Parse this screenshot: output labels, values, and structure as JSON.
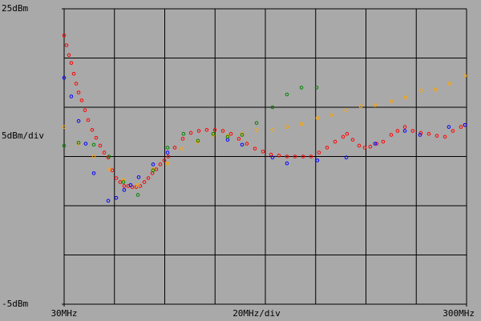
{
  "chart_data": {
    "type": "scatter",
    "ylabel": "5dBm/div",
    "xlabel": "20MHz/div",
    "xlim": [
      30,
      300
    ],
    "ylim": [
      -5,
      25
    ],
    "xticks": [
      {
        "value": 30,
        "label": "30MHz"
      },
      {
        "value": 300,
        "label": "300MHz"
      }
    ],
    "yticks": [
      {
        "value": 25,
        "label": "25dBm"
      },
      {
        "value": -5,
        "label": "-5dBm"
      }
    ],
    "grid": true,
    "series": [
      {
        "color": "#ff0000",
        "x": [
          30.0,
          31.6,
          33.2,
          34.8,
          36.5,
          38.1,
          39.7,
          41.8,
          44.0,
          46.1,
          48.8,
          51.5,
          54.2,
          56.9,
          59.6,
          62.3,
          65.0,
          67.6,
          70.3,
          73.0,
          75.7,
          78.4,
          81.1,
          83.8,
          86.5,
          89.2,
          91.8,
          94.5,
          97.2,
          99.9,
          104.2,
          109.6,
          115.0,
          120.4,
          125.7,
          131.1,
          136.5,
          141.9,
          147.2,
          152.6,
          158.0,
          163.4,
          168.8,
          174.1,
          179.5,
          184.9,
          190.3,
          195.6,
          201.0,
          206.4,
          211.8,
          217.2,
          219.8,
          223.6,
          227.9,
          231.7,
          235.4,
          239.7,
          244.0,
          249.4,
          253.7,
          258.6,
          263.9,
          269.3,
          274.7,
          280.1,
          285.5,
          290.8,
          296.2,
          298.9
        ],
        "values": [
          22.3,
          21.3,
          20.3,
          19.5,
          18.4,
          17.4,
          16.5,
          15.7,
          14.7,
          13.7,
          12.7,
          11.9,
          11.1,
          10.4,
          9.9,
          8.6,
          7.8,
          7.4,
          7.0,
          7.0,
          6.9,
          6.9,
          7.0,
          7.4,
          7.8,
          8.3,
          8.7,
          9.2,
          9.6,
          10.0,
          10.9,
          11.8,
          12.4,
          12.6,
          12.7,
          12.7,
          12.6,
          12.3,
          11.8,
          11.3,
          10.8,
          10.5,
          10.2,
          10.1,
          10.0,
          10.0,
          10.0,
          10.0,
          10.4,
          10.9,
          11.5,
          12.0,
          12.3,
          11.7,
          11.1,
          10.9,
          11.0,
          11.3,
          11.5,
          12.2,
          12.6,
          13.0,
          12.6,
          12.4,
          12.3,
          12.1,
          12.0,
          12.6,
          13.0,
          13.2
        ]
      },
      {
        "color": "#0000ff",
        "x": [
          30.0,
          34.8,
          39.7,
          44.5,
          49.9,
          59.6,
          65.0,
          70.3,
          74.6,
          80.0,
          89.7,
          99.4,
          139.7,
          149.4,
          169.8,
          179.5,
          199.9,
          219.3,
          238.6,
          258.6,
          268.8,
          288.1,
          298.9
        ],
        "values": [
          18.0,
          16.1,
          13.6,
          11.3,
          8.3,
          5.5,
          5.8,
          6.6,
          7.1,
          7.9,
          9.2,
          10.4,
          11.7,
          11.2,
          9.9,
          9.3,
          9.6,
          9.9,
          11.3,
          12.6,
          12.2,
          13.0,
          13.2
        ]
      },
      {
        "color": "#ffa500",
        "x": [
          30.0,
          39.7,
          49.9,
          60.1,
          69.8,
          79.5,
          89.7,
          99.4,
          109.1,
          119.4,
          130.0,
          139.7,
          149.4,
          159.1,
          169.8,
          179.5,
          189.2,
          199.9,
          209.1,
          219.3,
          229.0,
          238.6,
          249.4,
          259.1,
          269.3,
          279.0,
          288.7,
          298.9
        ],
        "values": [
          13.0,
          11.3,
          10.0,
          8.7,
          7.6,
          7.1,
          8.7,
          9.3,
          10.8,
          11.5,
          12.2,
          12.1,
          12.3,
          12.7,
          12.7,
          13.0,
          13.3,
          13.9,
          14.2,
          14.7,
          15.1,
          15.2,
          15.6,
          16.0,
          16.7,
          16.8,
          17.4,
          18.2
        ]
      },
      {
        "color": "#008000",
        "x": [
          30.0,
          39.7,
          49.9,
          60.1,
          69.8,
          79.5,
          89.7,
          99.4,
          110.1,
          119.8,
          130.0,
          139.7,
          149.4,
          159.1,
          169.8,
          179.5,
          189.2,
          199.4
        ],
        "values": [
          11.1,
          11.4,
          11.2,
          10.0,
          7.4,
          6.1,
          8.6,
          10.9,
          12.3,
          11.6,
          12.3,
          12.0,
          12.2,
          13.4,
          15.0,
          16.3,
          17.0,
          17.0
        ]
      }
    ]
  }
}
